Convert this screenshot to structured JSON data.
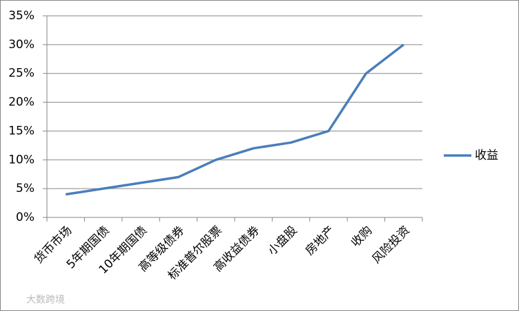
{
  "chart_data": {
    "type": "line",
    "categories": [
      "货币市场",
      "5年期国债",
      "10年期国债",
      "高等级债券",
      "标准普尔股票",
      "高收益债券",
      "小盘股",
      "房地产",
      "收购",
      "风险投资"
    ],
    "series": [
      {
        "name": "收益",
        "color": "#4a7ebb",
        "values": [
          4,
          5,
          6,
          7,
          10,
          12,
          13,
          15,
          25,
          30
        ]
      }
    ],
    "ylim": [
      0,
      35
    ],
    "yticks": [
      {
        "value": 0,
        "label": "0%"
      },
      {
        "value": 5,
        "label": "5%"
      },
      {
        "value": 10,
        "label": "10%"
      },
      {
        "value": 15,
        "label": "15%"
      },
      {
        "value": 20,
        "label": "20%"
      },
      {
        "value": 25,
        "label": "25%"
      },
      {
        "value": 30,
        "label": "30%"
      },
      {
        "value": 35,
        "label": "35%"
      }
    ],
    "grid": true,
    "legend": "right",
    "watermark": "大数跨境"
  }
}
